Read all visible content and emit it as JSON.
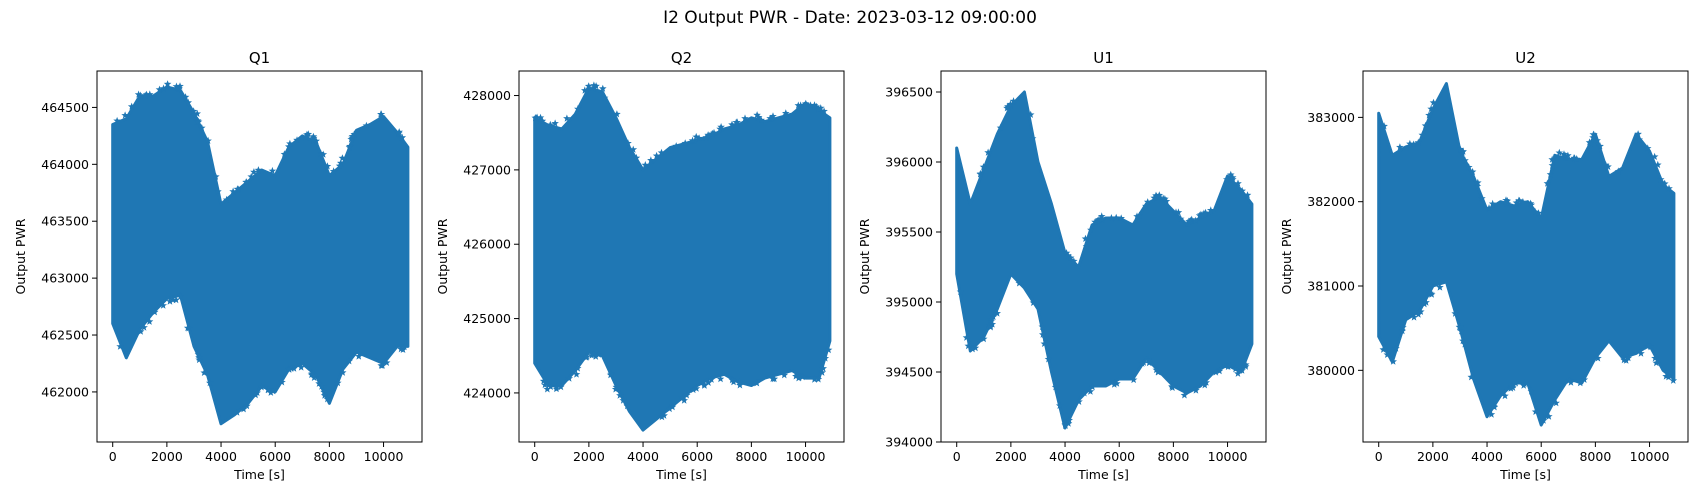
{
  "suptitle": "I2 Output PWR - Date: 2023-03-12 09:00:00",
  "chart_data": [
    {
      "type": "scatter",
      "title": "Q1",
      "xlabel": "Time [s]",
      "ylabel": "Output PWR",
      "xlim": [
        -580,
        11420
      ],
      "ylim": [
        461560,
        464820
      ],
      "xticks": [
        0,
        2000,
        4000,
        6000,
        8000,
        10000
      ],
      "xtick_labels": [
        "0",
        "2000",
        "4000",
        "6000",
        "8000",
        "10000"
      ],
      "yticks": [
        462000,
        462500,
        463000,
        463500,
        464000,
        464500
      ],
      "ytick_labels": [
        "462000",
        "462500",
        "463000",
        "463500",
        "464000",
        "464500"
      ],
      "marker": "star",
      "color": "#1f77b4",
      "x": [
        0,
        500,
        1000,
        1500,
        2000,
        2500,
        3000,
        3500,
        4000,
        4500,
        5000,
        5500,
        6000,
        6500,
        7000,
        7500,
        8000,
        8500,
        9000,
        9500,
        10000,
        10500,
        10900
      ],
      "y_max": [
        464350,
        464400,
        464600,
        464600,
        464680,
        464650,
        464450,
        464200,
        463650,
        463750,
        463850,
        463950,
        463900,
        464150,
        464250,
        464200,
        463900,
        464000,
        464300,
        464350,
        464420,
        464280,
        464150
      ],
      "y_min": [
        462600,
        462300,
        462550,
        462700,
        462820,
        462850,
        462400,
        462150,
        461720,
        461800,
        461900,
        462050,
        462000,
        462200,
        462250,
        462150,
        461900,
        462200,
        462350,
        462300,
        462250,
        462400,
        462400
      ]
    },
    {
      "type": "scatter",
      "title": "Q2",
      "xlabel": "Time [s]",
      "ylabel": "Output PWR",
      "xlim": [
        -580,
        11420
      ],
      "ylim": [
        423340,
        428330
      ],
      "xticks": [
        0,
        2000,
        4000,
        6000,
        8000,
        10000
      ],
      "xtick_labels": [
        "0",
        "2000",
        "4000",
        "6000",
        "8000",
        "10000"
      ],
      "yticks": [
        424000,
        425000,
        426000,
        427000,
        428000
      ],
      "ytick_labels": [
        "424000",
        "425000",
        "426000",
        "427000",
        "428000"
      ],
      "marker": "star",
      "color": "#1f77b4",
      "x": [
        0,
        500,
        1000,
        1500,
        2000,
        2500,
        3000,
        3500,
        4000,
        4500,
        5000,
        5500,
        6000,
        6500,
        7000,
        7500,
        8000,
        8500,
        9000,
        9500,
        10000,
        10500,
        10900
      ],
      "y_max": [
        427700,
        427600,
        427550,
        427750,
        428100,
        428050,
        427700,
        427300,
        427000,
        427150,
        427300,
        427350,
        427400,
        427450,
        427550,
        427600,
        427700,
        427650,
        427700,
        427750,
        427900,
        427800,
        427700
      ],
      "y_min": [
        424400,
        424100,
        424100,
        424300,
        424550,
        424500,
        424100,
        423750,
        423500,
        423650,
        423800,
        423950,
        424100,
        424200,
        424250,
        424150,
        424100,
        424200,
        424250,
        424300,
        424200,
        424200,
        424700
      ]
    },
    {
      "type": "scatter",
      "title": "U1",
      "xlabel": "Time [s]",
      "ylabel": "Output PWR",
      "xlim": [
        -580,
        11420
      ],
      "ylim": [
        394000,
        396650
      ],
      "xticks": [
        0,
        2000,
        4000,
        6000,
        8000,
        10000
      ],
      "xtick_labels": [
        "0",
        "2000",
        "4000",
        "6000",
        "8000",
        "10000"
      ],
      "yticks": [
        394000,
        394500,
        395000,
        395500,
        396000,
        396500
      ],
      "ytick_labels": [
        "394000",
        "394500",
        "395000",
        "395500",
        "396000",
        "396500"
      ],
      "marker": "star",
      "color": "#1f77b4",
      "x": [
        0,
        500,
        1000,
        1500,
        2000,
        2500,
        3000,
        3500,
        4000,
        4500,
        5000,
        5500,
        6000,
        6500,
        7000,
        7500,
        8000,
        8500,
        9000,
        9500,
        10000,
        10500,
        10900
      ],
      "y_max": [
        396100,
        395700,
        395950,
        396200,
        396400,
        396500,
        396000,
        395700,
        395350,
        395250,
        395550,
        395600,
        395600,
        395550,
        395700,
        395750,
        395650,
        395550,
        395600,
        395650,
        395900,
        395800,
        395700
      ],
      "y_min": [
        395200,
        394650,
        394750,
        394950,
        395200,
        395100,
        394950,
        394500,
        394100,
        394300,
        394400,
        394400,
        394450,
        394450,
        394600,
        394500,
        394400,
        394350,
        394400,
        394500,
        394550,
        394500,
        394700
      ]
    },
    {
      "type": "scatter",
      "title": "U2",
      "xlabel": "Time [s]",
      "ylabel": "Output PWR",
      "xlim": [
        -580,
        11420
      ],
      "ylim": [
        379150,
        383550
      ],
      "xticks": [
        0,
        2000,
        4000,
        6000,
        8000,
        10000
      ],
      "xtick_labels": [
        "0",
        "2000",
        "4000",
        "6000",
        "8000",
        "10000"
      ],
      "yticks": [
        380000,
        381000,
        382000,
        383000
      ],
      "ytick_labels": [
        "380000",
        "381000",
        "382000",
        "383000"
      ],
      "marker": "star",
      "color": "#1f77b4",
      "x": [
        0,
        500,
        1000,
        1500,
        2000,
        2500,
        3000,
        3500,
        4000,
        4500,
        5000,
        5500,
        6000,
        6500,
        7000,
        7500,
        8000,
        8500,
        9000,
        9500,
        10000,
        10500,
        10900
      ],
      "y_max": [
        383050,
        382550,
        382650,
        382700,
        383100,
        383400,
        382600,
        382300,
        381900,
        382000,
        381950,
        382000,
        381800,
        382550,
        382500,
        382500,
        382800,
        382300,
        382400,
        382800,
        382600,
        382200,
        382100
      ],
      "y_min": [
        380400,
        380100,
        380600,
        380700,
        381000,
        381050,
        380500,
        379900,
        379450,
        379700,
        379850,
        379850,
        379350,
        379650,
        379900,
        379850,
        380150,
        380350,
        380150,
        380200,
        380300,
        380000,
        379900
      ]
    }
  ]
}
